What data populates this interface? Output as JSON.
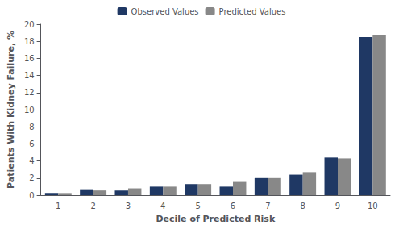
{
  "chart_data": {
    "type": "bar",
    "xlabel": "Decile of Predicted Risk",
    "ylabel": "Patients With Kidney Failure, %",
    "categories": [
      "1",
      "2",
      "3",
      "4",
      "5",
      "6",
      "7",
      "8",
      "9",
      "10"
    ],
    "series": [
      {
        "name": "Observed Values",
        "color": "#1F3864",
        "values": [
          0.25,
          0.6,
          0.55,
          1.0,
          1.3,
          1.0,
          2.0,
          2.4,
          4.4,
          18.5
        ]
      },
      {
        "name": "Predicted Values",
        "color": "#888888",
        "values": [
          0.25,
          0.55,
          0.8,
          1.0,
          1.3,
          1.55,
          2.0,
          2.7,
          4.3,
          18.7
        ]
      }
    ],
    "ylim": [
      0,
      20
    ],
    "yticks": [
      0,
      2,
      4,
      6,
      8,
      10,
      12,
      14,
      16,
      18,
      20
    ],
    "grid": false,
    "legend": "upper center"
  }
}
